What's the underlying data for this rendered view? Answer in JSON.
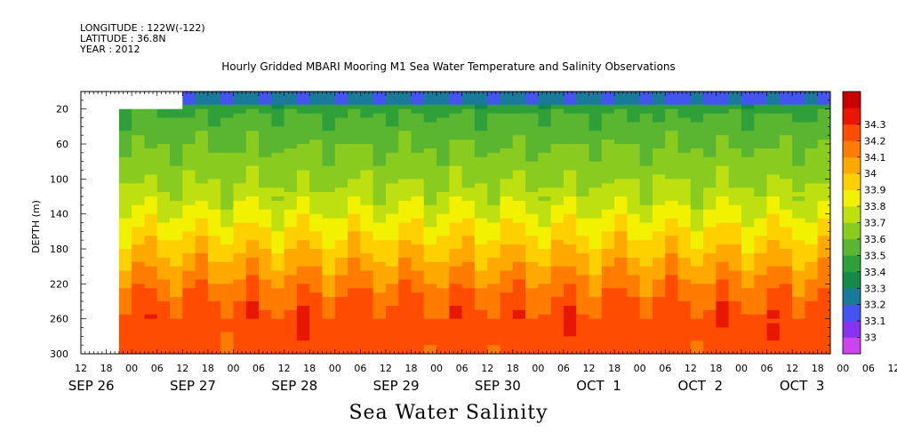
{
  "meta": {
    "longitude": "LONGITUDE : 122W(-122)",
    "latitude": "LATITUDE : 36.8N",
    "year": "YEAR : 2012"
  },
  "chart_data": {
    "type": "heatmap",
    "title": "Hourly Gridded MBARI Mooring M1 Sea Water Temperature and Salinity Observations",
    "bottom_title": "Sea Water Salinity",
    "ylabel": "DEPTH (m)",
    "ylim": [
      300,
      0
    ],
    "y_ticks": [
      20,
      60,
      100,
      140,
      180,
      220,
      260,
      300
    ],
    "hour_ticks": [
      "12",
      "18",
      "00",
      "06",
      "12",
      "18",
      "00",
      "06",
      "12",
      "18",
      "00",
      "06",
      "12",
      "18",
      "00",
      "06",
      "12",
      "18",
      "00",
      "06",
      "12",
      "18",
      "00",
      "06",
      "12",
      "18",
      "00",
      "06",
      "12",
      "18",
      "00",
      "06",
      "12"
    ],
    "day_labels": [
      "SEP 26",
      "SEP 27",
      "SEP 28",
      "SEP 29",
      "SEP 30",
      "OCT  1",
      "OCT  2",
      "OCT  3"
    ],
    "colorbar": {
      "levels": [
        "33",
        "33.1",
        "33.2",
        "33.3",
        "33.4",
        "33.5",
        "33.6",
        "33.7",
        "33.8",
        "33.9",
        "34",
        "34.1",
        "34.2",
        "34.3"
      ],
      "range": [
        33.0,
        34.3
      ],
      "colors": [
        "#cc44ee",
        "#8833ee",
        "#4455ee",
        "#1a7a9a",
        "#138a4a",
        "#2f9f3a",
        "#5ab530",
        "#8acb20",
        "#bfe010",
        "#f2f200",
        "#ffd000",
        "#ffa800",
        "#ff7c00",
        "#ff4d00",
        "#e81800",
        "#c80000"
      ]
    },
    "data_start": "SEP 26 21:00",
    "surface_missing_until": "SEP 27 12:00",
    "salinity_profile": [
      {
        "depth": 10,
        "value": 33.38
      },
      {
        "depth": 25,
        "value": 33.5
      },
      {
        "depth": 45,
        "value": 33.55
      },
      {
        "depth": 65,
        "value": 33.6
      },
      {
        "depth": 90,
        "value": 33.66
      },
      {
        "depth": 115,
        "value": 33.72
      },
      {
        "depth": 140,
        "value": 33.82
      },
      {
        "depth": 165,
        "value": 33.92
      },
      {
        "depth": 185,
        "value": 34.0
      },
      {
        "depth": 205,
        "value": 34.08
      },
      {
        "depth": 225,
        "value": 34.16
      },
      {
        "depth": 245,
        "value": 34.22
      },
      {
        "depth": 265,
        "value": 34.26
      },
      {
        "depth": 300,
        "value": 34.24
      }
    ]
  }
}
